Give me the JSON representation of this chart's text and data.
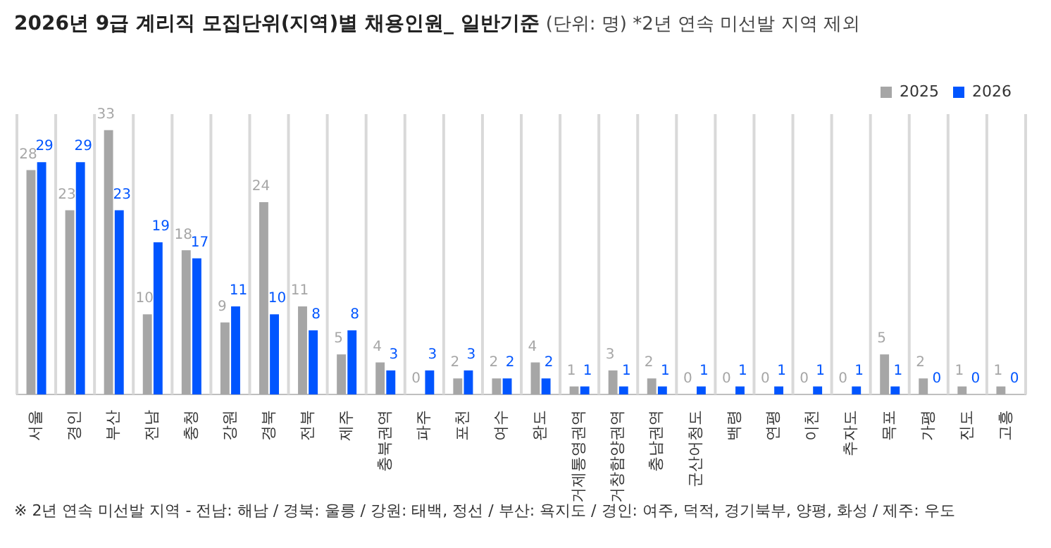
{
  "chart_data": {
    "type": "bar",
    "title": "2026년 9급 계리직 모집단위(지역)별 채용인원_ 일반기준",
    "subtitle": "(단위: 명)  *2년 연속 미선발 지역 제외",
    "categories": [
      "서울",
      "경인",
      "부산",
      "전남",
      "충청",
      "강원",
      "경북",
      "전북",
      "제주",
      "충북권역",
      "파주",
      "포천",
      "여수",
      "완도",
      "거제통영권역",
      "거창함양권역",
      "충남권역",
      "군산어청도",
      "백령",
      "연평",
      "이천",
      "추자도",
      "목포",
      "가평",
      "진도",
      "고흥"
    ],
    "series": [
      {
        "name": "2025",
        "color": "#a6a6a6",
        "values": [
          28,
          23,
          33,
          10,
          18,
          9,
          24,
          11,
          5,
          4,
          0,
          2,
          2,
          4,
          1,
          3,
          2,
          0,
          0,
          0,
          0,
          0,
          5,
          2,
          1,
          1
        ]
      },
      {
        "name": "2026",
        "color": "#0055ff",
        "values": [
          29,
          29,
          23,
          19,
          17,
          11,
          10,
          8,
          8,
          3,
          3,
          3,
          2,
          2,
          1,
          1,
          1,
          1,
          1,
          1,
          1,
          1,
          1,
          0,
          0,
          0
        ]
      }
    ],
    "data_labels": true,
    "grid": "x",
    "legend": "top right",
    "tick_labels": "x",
    "annotations": [
      "※ 2년 연속 미선발 지역 - 전남: 해남 / 경북: 울릉 / 강원: 태백, 정선 / 부산: 욕지도 / 경인: 여주, 덕적, 경기북부, 양평, 화성 / 제주: 우도"
    ]
  }
}
